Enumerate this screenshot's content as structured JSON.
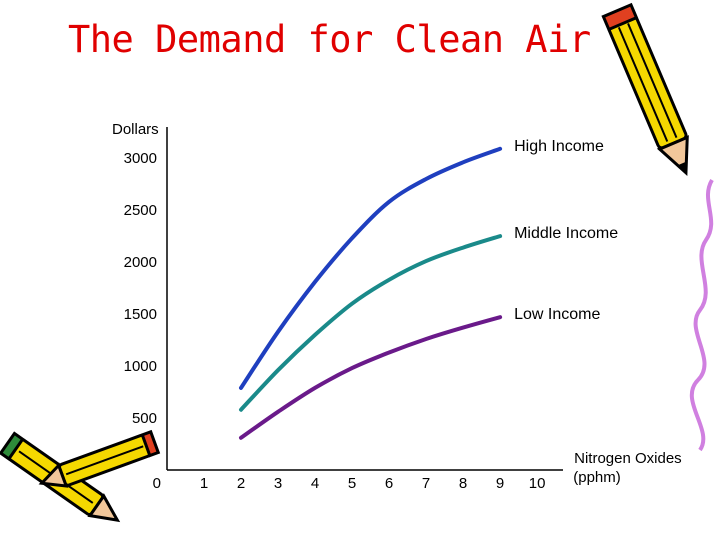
{
  "slide": {
    "title": "The Demand for Clean Air"
  },
  "chart_data": {
    "type": "line",
    "xlabel": "Nitrogen Oxides (pphm)",
    "xlabel_lines": [
      "Nitrogen Oxides",
      "(pphm)"
    ],
    "ylabel": "Dollars",
    "x_ticks": [
      0,
      1,
      2,
      3,
      4,
      5,
      6,
      7,
      8,
      9,
      10
    ],
    "y_ticks": [
      500,
      1000,
      1500,
      2000,
      2500,
      3000
    ],
    "xlim": [
      0,
      10.7
    ],
    "ylim": [
      0,
      3300
    ],
    "grid": false,
    "legend": "labels at line ends",
    "series": [
      {
        "name": "High Income",
        "color": "#1f3fbf",
        "x": [
          2,
          3,
          4,
          5,
          6,
          7,
          8,
          9
        ],
        "y": [
          790,
          1330,
          1810,
          2230,
          2580,
          2800,
          2960,
          3090
        ]
      },
      {
        "name": "Middle Income",
        "color": "#1a8a8a",
        "x": [
          2,
          3,
          4,
          5,
          6,
          7,
          8,
          9
        ],
        "y": [
          580,
          960,
          1300,
          1600,
          1830,
          2010,
          2140,
          2250
        ]
      },
      {
        "name": "Low Income",
        "color": "#6a1a8a",
        "x": [
          2,
          3,
          4,
          5,
          6,
          7,
          8,
          9
        ],
        "y": [
          310,
          560,
          790,
          980,
          1130,
          1260,
          1370,
          1470
        ]
      }
    ]
  },
  "decor": {
    "pencil_top_right": "pencil-icon",
    "pencils_bottom_left": "pencils-icon",
    "pencil_color": "#f5d800",
    "pencil_accent": "#e04020"
  }
}
